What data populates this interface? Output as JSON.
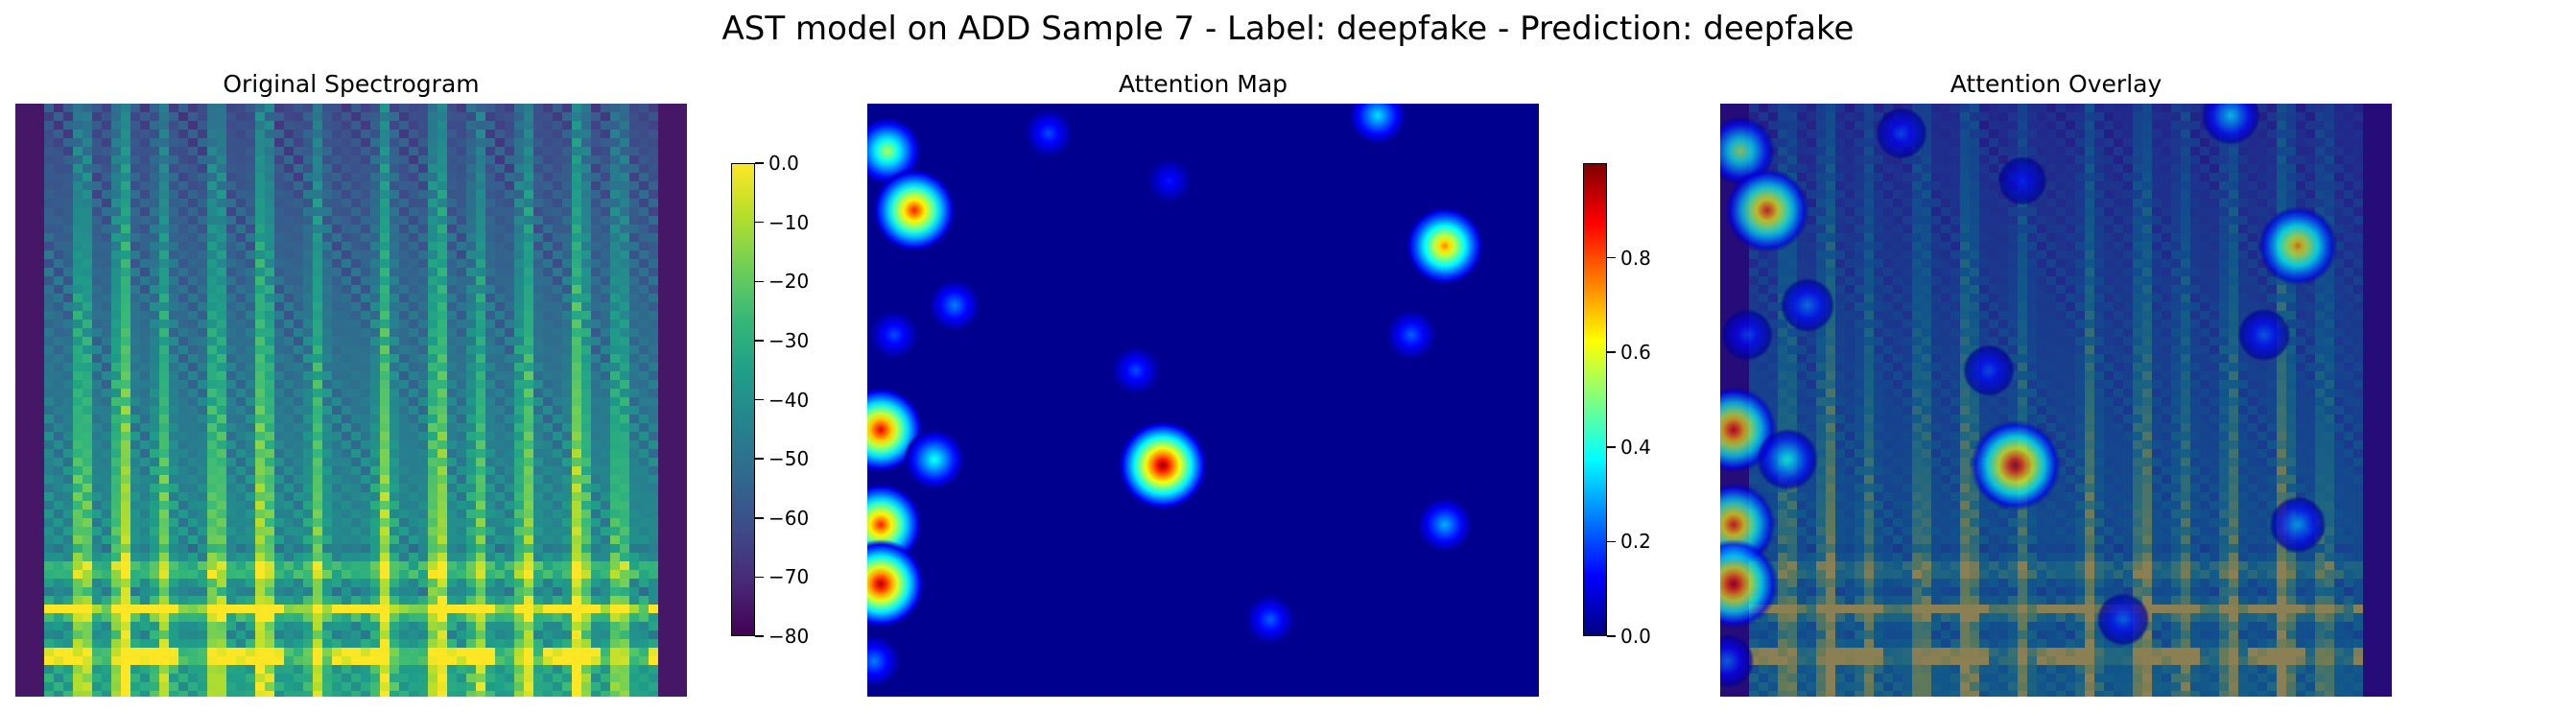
{
  "title": "AST model on ADD Sample 7 - Label: deepfake - Prediction: deepfake",
  "panels": [
    {
      "title": "Original Spectrogram"
    },
    {
      "title": "Attention Map"
    },
    {
      "title": "Attention Overlay"
    }
  ],
  "chart_data": [
    {
      "type": "heatmap",
      "title": "Original Spectrogram",
      "colormap": "viridis",
      "colorbar": {
        "range": [
          -80,
          0
        ],
        "ticks": [
          0,
          -10,
          -20,
          -30,
          -40,
          -50,
          -60,
          -70,
          -80
        ]
      },
      "axes": "off"
    },
    {
      "type": "heatmap",
      "title": "Attention Map",
      "colormap": "jet",
      "colorbar": {
        "range": [
          0,
          1
        ],
        "ticks": [
          0.8,
          0.6,
          0.4,
          0.2,
          0.0
        ]
      },
      "axes": "off",
      "hotspots": [
        {
          "x": 0.03,
          "y": 0.08,
          "value": 0.55
        },
        {
          "x": 0.07,
          "y": 0.18,
          "value": 0.85
        },
        {
          "x": 0.86,
          "y": 0.24,
          "value": 0.75
        },
        {
          "x": 0.02,
          "y": 0.55,
          "value": 0.9
        },
        {
          "x": 0.1,
          "y": 0.6,
          "value": 0.4
        },
        {
          "x": 0.44,
          "y": 0.61,
          "value": 0.98
        },
        {
          "x": 0.02,
          "y": 0.71,
          "value": 0.85
        },
        {
          "x": 0.02,
          "y": 0.81,
          "value": 0.95
        },
        {
          "x": 0.76,
          "y": 0.02,
          "value": 0.35
        },
        {
          "x": 0.86,
          "y": 0.71,
          "value": 0.3
        },
        {
          "x": 0.13,
          "y": 0.34,
          "value": 0.25
        },
        {
          "x": 0.81,
          "y": 0.39,
          "value": 0.22
        },
        {
          "x": 0.4,
          "y": 0.45,
          "value": 0.2
        },
        {
          "x": 0.6,
          "y": 0.87,
          "value": 0.22
        },
        {
          "x": 0.27,
          "y": 0.05,
          "value": 0.2
        },
        {
          "x": 0.45,
          "y": 0.13,
          "value": 0.15
        },
        {
          "x": 0.01,
          "y": 0.94,
          "value": 0.25
        },
        {
          "x": 0.04,
          "y": 0.39,
          "value": 0.2
        }
      ]
    },
    {
      "type": "heatmap",
      "title": "Attention Overlay",
      "colormap": "jet over viridis",
      "axes": "off"
    }
  ]
}
